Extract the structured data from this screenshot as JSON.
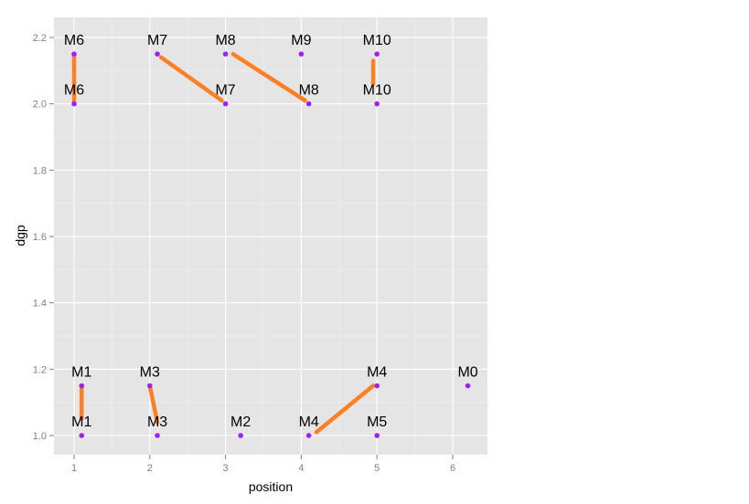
{
  "chart_data": {
    "type": "scatter",
    "title": "",
    "xlabel": "position",
    "ylabel": "dgp",
    "xlim": [
      0.73,
      6.45
    ],
    "ylim": [
      0.94,
      2.26
    ],
    "x_ticks": [
      1,
      2,
      3,
      4,
      5,
      6
    ],
    "y_ticks": [
      1.0,
      1.2,
      1.4,
      1.6,
      1.8,
      2.0,
      2.2
    ],
    "y_tick_labels": [
      "1.0",
      "1.2",
      "1.4",
      "1.6",
      "1.8",
      "2.0",
      "2.2"
    ],
    "grid": true,
    "legend": "none",
    "colors": {
      "panel": "#e5e5e5",
      "grid": "#ffffff",
      "point": "#a020f0",
      "segment": "#ff7f24",
      "tick": "#7f7f7f"
    },
    "points": [
      {
        "label": "M6",
        "x": 1.0,
        "y": 2.15
      },
      {
        "label": "M6",
        "x": 1.0,
        "y": 2.0
      },
      {
        "label": "M7",
        "x": 2.1,
        "y": 2.15
      },
      {
        "label": "M7",
        "x": 3.0,
        "y": 2.0
      },
      {
        "label": "M8",
        "x": 3.0,
        "y": 2.15
      },
      {
        "label": "M8",
        "x": 4.1,
        "y": 2.0
      },
      {
        "label": "M9",
        "x": 4.0,
        "y": 2.15
      },
      {
        "label": "M10",
        "x": 5.0,
        "y": 2.15
      },
      {
        "label": "M10",
        "x": 5.0,
        "y": 2.0
      },
      {
        "label": "M1",
        "x": 1.1,
        "y": 1.15
      },
      {
        "label": "M1",
        "x": 1.1,
        "y": 1.0
      },
      {
        "label": "M3",
        "x": 2.0,
        "y": 1.15
      },
      {
        "label": "M3",
        "x": 2.1,
        "y": 1.0
      },
      {
        "label": "M2",
        "x": 3.2,
        "y": 1.0
      },
      {
        "label": "M4",
        "x": 5.0,
        "y": 1.15
      },
      {
        "label": "M4",
        "x": 4.1,
        "y": 1.0
      },
      {
        "label": "M5",
        "x": 5.0,
        "y": 1.0
      },
      {
        "label": "M0",
        "x": 6.2,
        "y": 1.15
      }
    ],
    "segments": [
      {
        "x1": 1.0,
        "y1": 2.15,
        "x2": 1.0,
        "y2": 2.01
      },
      {
        "x1": 2.15,
        "y1": 2.14,
        "x2": 2.95,
        "y2": 2.01
      },
      {
        "x1": 3.1,
        "y1": 2.15,
        "x2": 4.05,
        "y2": 2.01
      },
      {
        "x1": 4.95,
        "y1": 2.13,
        "x2": 4.95,
        "y2": 2.06
      },
      {
        "x1": 1.1,
        "y1": 1.15,
        "x2": 1.1,
        "y2": 1.05
      },
      {
        "x1": 2.0,
        "y1": 1.15,
        "x2": 2.1,
        "y2": 1.04
      },
      {
        "x1": 4.2,
        "y1": 1.01,
        "x2": 4.95,
        "y2": 1.15
      }
    ]
  }
}
